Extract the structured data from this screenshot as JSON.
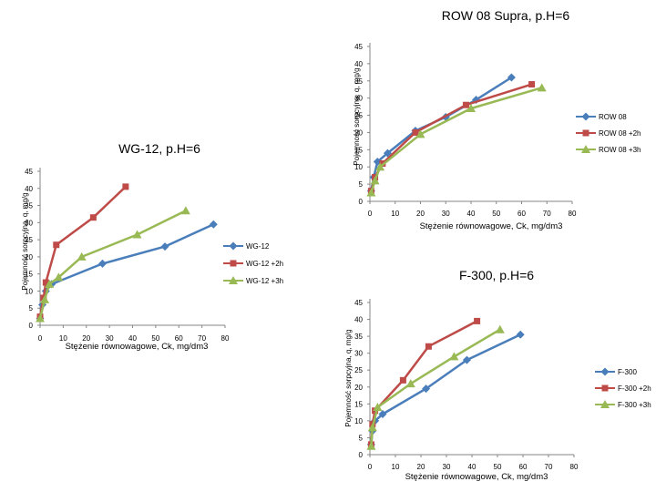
{
  "chart_data": [
    {
      "type": "line",
      "title": "ROW 08 Supra, p.H=6",
      "xlabel": "Stężenie równowagowe, Ck, mg/dm3",
      "ylabel": "Pojemność sorpcyjna, q, mg/g",
      "xlim": [
        0,
        80
      ],
      "ylim": [
        0,
        45
      ],
      "xticks": [
        0,
        10,
        20,
        30,
        40,
        50,
        60,
        70,
        80
      ],
      "yticks": [
        0,
        5,
        10,
        15,
        20,
        25,
        30,
        35,
        40,
        45
      ],
      "legend_position": "right",
      "series": [
        {
          "name": "ROW 08",
          "color": "#4a7ebb",
          "marker": "diamond",
          "points": [
            [
              0.5,
              3
            ],
            [
              1.5,
              7
            ],
            [
              3,
              11.5
            ],
            [
              7,
              14
            ],
            [
              18,
              20.5
            ],
            [
              30,
              24.5
            ],
            [
              42,
              29.5
            ],
            [
              56,
              36
            ]
          ]
        },
        {
          "name": "ROW 08 +2h",
          "color": "#be4b48",
          "marker": "square",
          "points": [
            [
              0.5,
              3
            ],
            [
              2,
              7
            ],
            [
              5,
              11
            ],
            [
              18,
              20
            ],
            [
              38,
              28
            ],
            [
              64,
              34
            ]
          ]
        },
        {
          "name": "ROW 08 +3h",
          "color": "#98b954",
          "marker": "triangle",
          "points": [
            [
              0.5,
              2.5
            ],
            [
              2,
              6
            ],
            [
              4,
              10
            ],
            [
              20,
              19.5
            ],
            [
              40,
              27
            ],
            [
              68,
              33
            ]
          ]
        }
      ]
    },
    {
      "type": "line",
      "title": "WG-12, p.H=6",
      "xlabel": "Stężenie równowagowe, Ck, mg/dm3",
      "ylabel": "Pojemność sorpcyjna, q, mg/g",
      "xlim": [
        0,
        80
      ],
      "ylim": [
        0,
        45
      ],
      "xticks": [
        0,
        10,
        20,
        30,
        40,
        50,
        60,
        70,
        80
      ],
      "yticks": [
        0,
        5,
        10,
        15,
        20,
        25,
        30,
        35,
        40,
        45
      ],
      "legend_position": "right",
      "series": [
        {
          "name": "WG-12",
          "color": "#4a7ebb",
          "marker": "diamond",
          "points": [
            [
              0,
              2
            ],
            [
              1,
              6
            ],
            [
              2.5,
              10
            ],
            [
              5,
              12
            ],
            [
              27,
              18
            ],
            [
              54,
              23
            ],
            [
              75,
              29.5
            ]
          ]
        },
        {
          "name": "WG-12 +2h",
          "color": "#be4b48",
          "marker": "square",
          "points": [
            [
              0,
              2.5
            ],
            [
              1.5,
              8
            ],
            [
              2.5,
              12.5
            ],
            [
              7,
              23.5
            ],
            [
              23,
              31.5
            ],
            [
              37,
              40.5
            ]
          ]
        },
        {
          "name": "WG-12 +3h",
          "color": "#98b954",
          "marker": "triangle",
          "points": [
            [
              0,
              2
            ],
            [
              2,
              7.5
            ],
            [
              4,
              12
            ],
            [
              8,
              14
            ],
            [
              18,
              20
            ],
            [
              42,
              26.5
            ],
            [
              63,
              33.5
            ]
          ]
        }
      ]
    },
    {
      "type": "line",
      "title": "F-300, p.H=6",
      "xlabel": "Stężenie równowagowe, Ck, mg/dm3",
      "ylabel": "Pojemność sorpcyjna, q, mg/g",
      "xlim": [
        0,
        80
      ],
      "ylim": [
        0,
        45
      ],
      "xticks": [
        0,
        10,
        20,
        30,
        40,
        50,
        60,
        70,
        80
      ],
      "yticks": [
        0,
        5,
        10,
        15,
        20,
        25,
        30,
        35,
        40,
        45
      ],
      "legend_position": "right",
      "series": [
        {
          "name": "F-300",
          "color": "#4a7ebb",
          "marker": "diamond",
          "points": [
            [
              0.5,
              3
            ],
            [
              1,
              7
            ],
            [
              2,
              10
            ],
            [
              5,
              12
            ],
            [
              22,
              19.5
            ],
            [
              38,
              28
            ],
            [
              59,
              35.5
            ]
          ]
        },
        {
          "name": "F-300 +2h",
          "color": "#be4b48",
          "marker": "square",
          "points": [
            [
              0.5,
              3
            ],
            [
              1,
              9
            ],
            [
              2,
              13
            ],
            [
              13,
              22
            ],
            [
              23,
              32
            ],
            [
              42,
              39.5
            ]
          ]
        },
        {
          "name": "F-300 +3h",
          "color": "#98b954",
          "marker": "triangle",
          "points": [
            [
              0.5,
              2.5
            ],
            [
              1,
              8
            ],
            [
              3,
              14
            ],
            [
              16,
              21
            ],
            [
              33,
              29
            ],
            [
              51,
              37
            ]
          ]
        }
      ]
    }
  ]
}
